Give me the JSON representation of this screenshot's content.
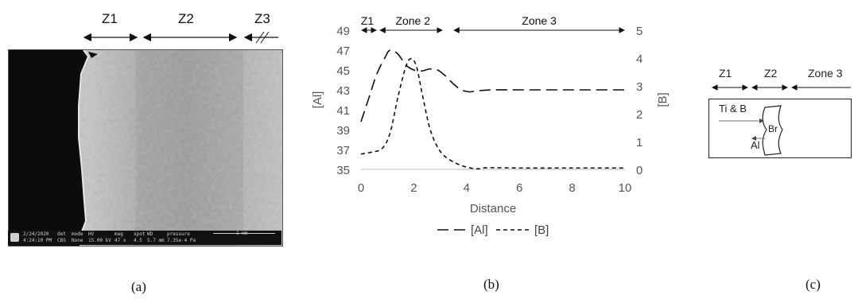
{
  "panel_a": {
    "caption": "(a)",
    "zones": [
      "Z1",
      "Z2",
      "Z3"
    ],
    "footer": {
      "date": "2/24/2020",
      "time": "4:24:10 PM",
      "det_label": "det",
      "det_value": "CBS",
      "mode_label": "mode",
      "mode_value": "None",
      "hv_label": "HV",
      "hv_value": "15.00 kV",
      "mag_label": "mag",
      "mag_value": "47 x",
      "spot_label": "spot",
      "spot_value": "4.5",
      "wd_label": "WD",
      "wd_value": "5.7 mm",
      "pressure_label": "pressure",
      "pressure_value": "7.35e-4 Pa",
      "scale_label": "1 mm"
    }
  },
  "panel_b": {
    "caption": "(b)",
    "zones": [
      "Z1",
      "Zone 2",
      "Zone 3"
    ]
  },
  "panel_c": {
    "caption": "(c)",
    "zones": [
      "Z1",
      "Z2",
      "Zone 3"
    ],
    "labels": {
      "ti_b": "Ti & B",
      "br": "Br",
      "al": "Al"
    }
  },
  "chart_data": {
    "type": "line",
    "xlabel": "Distance",
    "ylabel": "[Al]",
    "y2label": "[B]",
    "xlim": [
      0,
      10
    ],
    "ylim": [
      35,
      49
    ],
    "y2lim": [
      0,
      5
    ],
    "xticks": [
      "0",
      "2",
      "4",
      "6",
      "8",
      "10"
    ],
    "yticks": [
      "35",
      "37",
      "39",
      "41",
      "43",
      "45",
      "47",
      "49"
    ],
    "y2ticks": [
      "0",
      "1",
      "2",
      "3",
      "4",
      "5"
    ],
    "grid": false,
    "legend": "bottom",
    "series": [
      {
        "name": "[Al]",
        "axis": "left",
        "dash": "long",
        "x": [
          0,
          0.3,
          0.6,
          0.9,
          1.1,
          1.4,
          1.7,
          2.0,
          2.3,
          2.6,
          2.9,
          3.2,
          3.5,
          3.8,
          4.1,
          4.4,
          5,
          6,
          7,
          8,
          9,
          10
        ],
        "y": [
          39.8,
          42.2,
          44.6,
          46.2,
          47.0,
          46.6,
          45.5,
          45.0,
          44.9,
          45.1,
          45.0,
          44.4,
          43.6,
          43.0,
          42.8,
          42.9,
          43.0,
          43.0,
          43.0,
          43.0,
          43.0,
          43.0
        ]
      },
      {
        "name": "[B]",
        "axis": "right",
        "dash": "short",
        "x": [
          0,
          0.4,
          0.8,
          1.1,
          1.4,
          1.7,
          1.9,
          2.1,
          2.3,
          2.6,
          2.9,
          3.2,
          3.6,
          4.0,
          4.4,
          4.8,
          6,
          8,
          10
        ],
        "y": [
          0.55,
          0.62,
          0.75,
          1.3,
          2.6,
          3.7,
          3.98,
          3.7,
          2.8,
          1.5,
          0.8,
          0.45,
          0.22,
          0.08,
          0.02,
          0.06,
          0.05,
          0.05,
          0.05
        ]
      }
    ]
  }
}
